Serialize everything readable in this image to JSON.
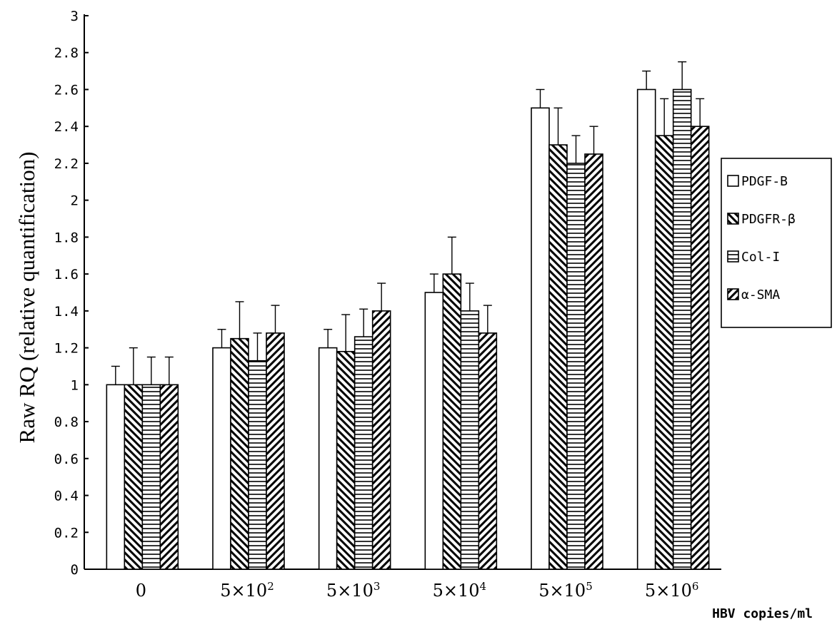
{
  "chart_data": {
    "type": "bar",
    "title": "",
    "ylabel": "Raw RQ (relative quantification)",
    "xlabel": "HBV copies/ml",
    "ylim": [
      0,
      3
    ],
    "yticks": [
      "0",
      "0.2",
      "0.4",
      "0.6",
      "0.8",
      "1",
      "1.2",
      "1.4",
      "1.6",
      "1.8",
      "2",
      "2.2",
      "2.4",
      "2.6",
      "2.8",
      "3"
    ],
    "categories": [
      {
        "base": "0",
        "exp": ""
      },
      {
        "base": "5×10",
        "exp": "2"
      },
      {
        "base": "5×10",
        "exp": "3"
      },
      {
        "base": "5×10",
        "exp": "4"
      },
      {
        "base": "5×10",
        "exp": "5"
      },
      {
        "base": "5×10",
        "exp": "6"
      }
    ],
    "grid": false,
    "legend_position": "right",
    "series": [
      {
        "name": "PDGF-B",
        "pattern": "open",
        "values": [
          1.0,
          1.2,
          1.2,
          1.5,
          2.5,
          2.6
        ],
        "errors": [
          0.1,
          0.1,
          0.1,
          0.1,
          0.1,
          0.1
        ]
      },
      {
        "name": "PDGFR-β",
        "pattern": "backslash",
        "values": [
          1.0,
          1.25,
          1.18,
          1.6,
          2.3,
          2.35
        ],
        "errors": [
          0.2,
          0.2,
          0.2,
          0.2,
          0.2,
          0.2
        ]
      },
      {
        "name": "Col-I",
        "pattern": "horizontal",
        "values": [
          1.0,
          1.13,
          1.26,
          1.4,
          2.2,
          2.6
        ],
        "errors": [
          0.15,
          0.15,
          0.15,
          0.15,
          0.15,
          0.15
        ]
      },
      {
        "name": "α-SMA",
        "pattern": "slash",
        "values": [
          1.0,
          1.28,
          1.4,
          1.28,
          2.25,
          2.4
        ],
        "errors": [
          0.15,
          0.15,
          0.15,
          0.15,
          0.15,
          0.15
        ]
      }
    ]
  }
}
